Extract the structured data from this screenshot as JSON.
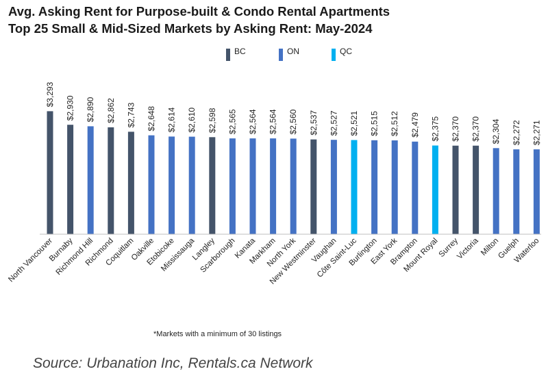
{
  "chart_data": {
    "type": "bar",
    "title": "Avg. Asking Rent for Purpose-built & Condo Rental Apartments",
    "subtitle": "Top 25 Small & Mid-Sized Markets by Asking Rent: May-2024",
    "categories": [
      "North Vancouver",
      "Burnaby",
      "Richmond Hill",
      "Richmond",
      "Coquitlam",
      "Oakville",
      "Etobicoke",
      "Mississauga",
      "Langley",
      "Scarborough",
      "Kanata",
      "Markham",
      "North York",
      "New Westminster",
      "Vaughan",
      "Côte Saint-Luc",
      "Burlington",
      "East York",
      "Brampton",
      "Mount Royal",
      "Surrey",
      "Victoria",
      "Milton",
      "Guelph",
      "Waterloo"
    ],
    "values": [
      3293,
      2930,
      2890,
      2862,
      2743,
      2648,
      2614,
      2610,
      2598,
      2565,
      2564,
      2564,
      2560,
      2537,
      2527,
      2521,
      2515,
      2512,
      2479,
      2375,
      2370,
      2370,
      2304,
      2272,
      2271
    ],
    "labels": [
      "$3,293",
      "$2,930",
      "$2,890",
      "$2,862",
      "$2,743",
      "$2,648",
      "$2,614",
      "$2,610",
      "$2,598",
      "$2,565",
      "$2,564",
      "$2,564",
      "$2,560",
      "$2,537",
      "$2,527",
      "$2,521",
      "$2,515",
      "$2,512",
      "$2,479",
      "$2,375",
      "$2,370",
      "$2,370",
      "$2,304",
      "$2,272",
      "$2,271"
    ],
    "groups": [
      "BC",
      "BC",
      "ON",
      "BC",
      "BC",
      "ON",
      "ON",
      "ON",
      "BC",
      "ON",
      "ON",
      "ON",
      "ON",
      "BC",
      "ON",
      "QC",
      "ON",
      "ON",
      "ON",
      "QC",
      "BC",
      "BC",
      "ON",
      "ON",
      "ON"
    ],
    "legend": [
      {
        "name": "BC",
        "color": "#44546a"
      },
      {
        "name": "ON",
        "color": "#4472c4"
      },
      {
        "name": "QC",
        "color": "#00b0f0"
      }
    ],
    "ylim": [
      0,
      3300
    ],
    "xlabel": "",
    "ylabel": "",
    "grid": false,
    "legend_position": "top"
  },
  "footnote": "*Markets with a minimum of 30 listings",
  "source": "Source: Urbanation Inc, Rentals.ca Network"
}
